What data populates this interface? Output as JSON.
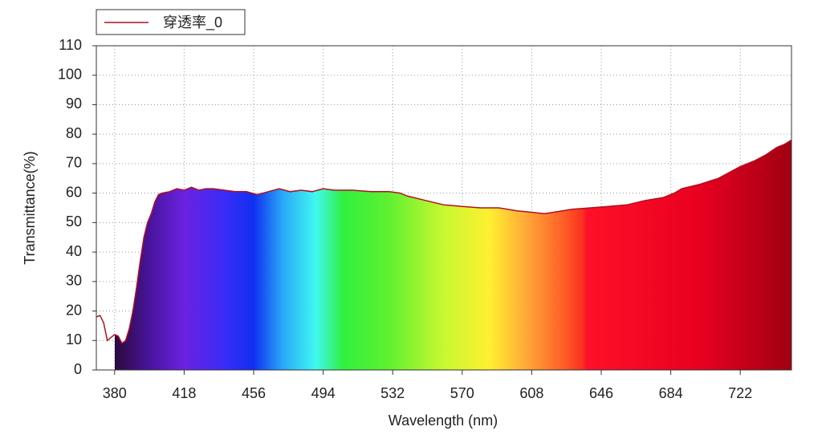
{
  "chart_data": {
    "type": "area",
    "legend": "top-left",
    "xlabel": "Wavelength (nm)",
    "ylabel": "Transmittance(%)",
    "grid": true,
    "xlim": [
      370,
      750
    ],
    "ylim": [
      0,
      110
    ],
    "xticks": [
      380,
      418,
      456,
      494,
      532,
      570,
      608,
      646,
      684,
      722
    ],
    "yticks": [
      0,
      10,
      20,
      30,
      40,
      50,
      60,
      70,
      80,
      90,
      100,
      110
    ],
    "fill_stops": [
      {
        "x": 380,
        "color": "#2a0a3c"
      },
      {
        "x": 400,
        "color": "#4a14a0"
      },
      {
        "x": 418,
        "color": "#6a22e0"
      },
      {
        "x": 440,
        "color": "#3a2cf8"
      },
      {
        "x": 456,
        "color": "#1030f0"
      },
      {
        "x": 472,
        "color": "#2aa8f8"
      },
      {
        "x": 490,
        "color": "#40f8f0"
      },
      {
        "x": 505,
        "color": "#30f040"
      },
      {
        "x": 530,
        "color": "#60f030"
      },
      {
        "x": 560,
        "color": "#c8f830"
      },
      {
        "x": 585,
        "color": "#fff030"
      },
      {
        "x": 605,
        "color": "#ffa838"
      },
      {
        "x": 625,
        "color": "#ff6028"
      },
      {
        "x": 636,
        "color": "#f83020"
      },
      {
        "x": 638,
        "color": "#ff1028"
      },
      {
        "x": 700,
        "color": "#e80020"
      },
      {
        "x": 750,
        "color": "#a00010"
      }
    ],
    "series": [
      {
        "name": "穿透率_0",
        "color": "#b01020",
        "x": [
          370,
          372,
          374,
          376,
          378,
          380,
          382,
          384,
          386,
          388,
          390,
          392,
          394,
          396,
          398,
          400,
          402,
          404,
          406,
          410,
          414,
          418,
          422,
          426,
          430,
          434,
          440,
          446,
          452,
          458,
          464,
          470,
          476,
          482,
          488,
          494,
          500,
          510,
          520,
          530,
          536,
          540,
          550,
          560,
          570,
          580,
          590,
          600,
          608,
          615,
          620,
          630,
          640,
          650,
          660,
          670,
          680,
          686,
          690,
          700,
          710,
          716,
          722,
          730,
          736,
          742,
          746,
          750
        ],
        "values": [
          18,
          18.5,
          16,
          10,
          11,
          12,
          11.5,
          9,
          10,
          14,
          20,
          28,
          37,
          45,
          50,
          53,
          57,
          59.5,
          60,
          60.5,
          61.5,
          61,
          62,
          61,
          61.5,
          61.5,
          61,
          60.5,
          60.5,
          59.5,
          60.5,
          61.5,
          60.5,
          61,
          60.5,
          61.5,
          61,
          61,
          60.5,
          60.5,
          60,
          59,
          57.5,
          56,
          55.5,
          55,
          55,
          54,
          53.5,
          53,
          53.5,
          54.5,
          55,
          55.5,
          56,
          57.5,
          58.5,
          60,
          61.5,
          63,
          65,
          67,
          69,
          71,
          73,
          75.5,
          76.5,
          78
        ]
      }
    ]
  }
}
